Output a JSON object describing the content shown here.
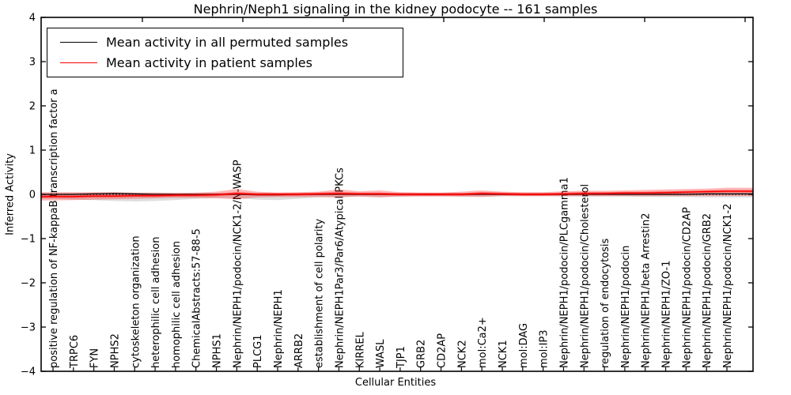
{
  "chart_data": {
    "type": "line",
    "title": "Nephrin/Neph1 signaling in the kidney podocyte -- 161 samples",
    "xlabel": "Cellular Entities",
    "ylabel": "Inferred Activity",
    "ylim": [
      -4,
      4
    ],
    "yticks": [
      -4,
      -3,
      -2,
      -1,
      0,
      1,
      2,
      3,
      4
    ],
    "grid": false,
    "legend_position": "upper left",
    "zero_line": {
      "style": "dotted",
      "color": "#000000",
      "y": 0
    },
    "categories": [
      "positive regulation of NF-kappaB transcription factor a",
      "TRPC6",
      "FYN",
      "NPHS2",
      "cytoskeleton organization",
      "heterophilic cell adhesion",
      "homophilic cell adhesion",
      "ChemicalAbstracts:57-88-5",
      "NPHS1",
      "Nephrin/NEPH1/podocin/NCK1-2/N-WASP",
      "PLCG1",
      "Nephrin/NEPH1",
      "ARRB2",
      "establishment of cell polarity",
      "Nephrin/NEPH1Par3/Par6/Atypical PKCs",
      "KIRREL",
      "WASL",
      "TJP1",
      "GRB2",
      "CD2AP",
      "NCK2",
      "mol:Ca2+",
      "NCK1",
      "mol:DAG",
      "mol:IP3",
      "Nephrin/NEPH1/podocin/PLCgamma1",
      "Nephrin/NEPH1/podocin/Cholesterol",
      "regulation of endocytosis",
      "Nephrin/NEPH1/podocin",
      "Nephrin/NEPH1/beta Arrestin2",
      "Nephrin/NEPH1/ZO-1",
      "Nephrin/NEPH1/podocin/CD2AP",
      "Nephrin/NEPH1/podocin/GRB2",
      "Nephrin/NEPH1/podocin/NCK1-2"
    ],
    "series": [
      {
        "name": "Mean activity in all permuted samples",
        "color": "#000000",
        "values": [
          0.0,
          0.0,
          0.01,
          0.02,
          0.01,
          0.0,
          0.0,
          0.0,
          0.0,
          0.0,
          -0.01,
          -0.01,
          0.0,
          0.0,
          0.0,
          0.0,
          0.0,
          0.0,
          0.0,
          0.0,
          0.0,
          0.0,
          0.0,
          0.0,
          0.0,
          0.0,
          0.0,
          0.0,
          0.0,
          0.0,
          0.0,
          0.0,
          0.01,
          0.01
        ],
        "band": {
          "opacity": 0.13,
          "upper": [
            0.03,
            0.03,
            0.03,
            0.03,
            0.03,
            0.03,
            0.03,
            0.03,
            0.03,
            0.03,
            0.03,
            0.03,
            0.03,
            0.03,
            0.03,
            0.03,
            0.03,
            0.03,
            0.03,
            0.03,
            0.03,
            0.03,
            0.03,
            0.03,
            0.03,
            0.03,
            0.03,
            0.03,
            0.03,
            0.03,
            0.03,
            0.03,
            0.03,
            0.03
          ],
          "lower": [
            -0.1,
            -0.12,
            -0.13,
            -0.15,
            -0.16,
            -0.15,
            -0.13,
            -0.1,
            -0.08,
            -0.08,
            -0.12,
            -0.13,
            -0.1,
            -0.07,
            -0.06,
            -0.05,
            -0.06,
            -0.05,
            -0.04,
            -0.04,
            -0.05,
            -0.05,
            -0.04,
            -0.04,
            -0.04,
            -0.05,
            -0.05,
            -0.05,
            -0.05,
            -0.06,
            -0.06,
            -0.06,
            -0.07,
            -0.07
          ]
        }
      },
      {
        "name": "Mean activity in patient samples",
        "color": "#ff0000",
        "values": [
          -0.05,
          -0.05,
          -0.04,
          -0.04,
          -0.03,
          -0.03,
          -0.02,
          -0.02,
          -0.01,
          0.02,
          0.0,
          0.0,
          0.0,
          0.01,
          0.02,
          0.01,
          0.01,
          0.0,
          0.0,
          0.0,
          0.0,
          0.02,
          0.01,
          0.0,
          0.0,
          0.01,
          0.02,
          0.02,
          0.03,
          0.03,
          0.04,
          0.05,
          0.06,
          0.07
        ],
        "band": {
          "opacity": 0.28,
          "upper": [
            0.05,
            0.05,
            0.05,
            0.05,
            0.04,
            0.04,
            0.03,
            0.04,
            0.06,
            0.12,
            0.06,
            0.04,
            0.05,
            0.06,
            0.11,
            0.07,
            0.09,
            0.05,
            0.04,
            0.04,
            0.06,
            0.09,
            0.06,
            0.05,
            0.05,
            0.07,
            0.08,
            0.08,
            0.09,
            0.1,
            0.11,
            0.12,
            0.13,
            0.15
          ],
          "lower": [
            -0.14,
            -0.13,
            -0.12,
            -0.11,
            -0.1,
            -0.09,
            -0.08,
            -0.08,
            -0.09,
            -0.11,
            -0.07,
            -0.06,
            -0.06,
            -0.06,
            -0.07,
            -0.05,
            -0.07,
            -0.05,
            -0.05,
            -0.05,
            -0.05,
            -0.06,
            -0.04,
            -0.04,
            -0.04,
            -0.04,
            -0.04,
            -0.04,
            -0.04,
            -0.04,
            -0.04,
            -0.04,
            -0.04,
            -0.04
          ]
        }
      }
    ]
  }
}
